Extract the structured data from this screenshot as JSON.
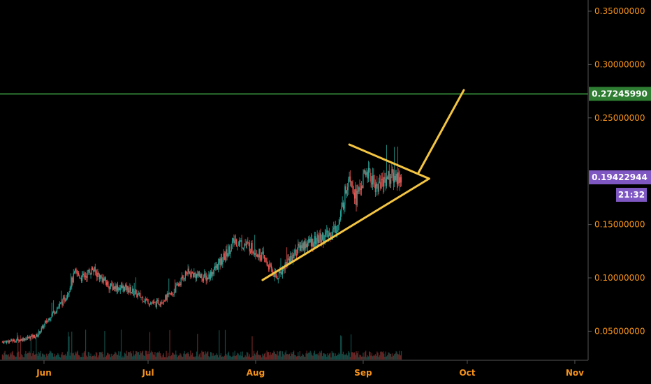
{
  "chart_data": {
    "type": "candlestick",
    "x_axis": {
      "tick_labels": [
        "Jun",
        "Jul",
        "Aug",
        "Sep",
        "Oct",
        "Nov"
      ]
    },
    "y_axis": {
      "range": [
        0.03,
        0.37
      ],
      "tick_labels": [
        "0.35000000",
        "0.30000000",
        "0.25000000",
        "0.15000000",
        "0.10000000",
        "0.05000000"
      ],
      "tick_values": [
        0.35,
        0.3,
        0.25,
        0.15,
        0.1,
        0.05
      ],
      "position": "right"
    },
    "horizontal_line": {
      "value": 0.2724599,
      "label": "0.27245990",
      "color": "#2e7d32"
    },
    "last_price": {
      "value": 0.19422944,
      "label": "0.19422944",
      "countdown": "21:32",
      "color": "#7e57c2"
    },
    "price_path_approx": [
      [
        "May 20",
        0.04
      ],
      [
        "May 25",
        0.042
      ],
      [
        "May 30",
        0.046
      ],
      [
        "Jun 3",
        0.065
      ],
      [
        "Jun 7",
        0.08
      ],
      [
        "Jun 10",
        0.105
      ],
      [
        "Jun 12",
        0.1
      ],
      [
        "Jun 15",
        0.108
      ],
      [
        "Jun 20",
        0.092
      ],
      [
        "Jun 25",
        0.09
      ],
      [
        "Jun 30",
        0.08
      ],
      [
        "Jul 3",
        0.075
      ],
      [
        "Jul 8",
        0.085
      ],
      [
        "Jul 12",
        0.105
      ],
      [
        "Jul 18",
        0.1
      ],
      [
        "Jul 22",
        0.115
      ],
      [
        "Jul 26",
        0.135
      ],
      [
        "Jul 30",
        0.13
      ],
      [
        "Aug 3",
        0.12
      ],
      [
        "Aug 7",
        0.1
      ],
      [
        "Aug 10",
        0.115
      ],
      [
        "Aug 14",
        0.13
      ],
      [
        "Aug 18",
        0.135
      ],
      [
        "Aug 22",
        0.14
      ],
      [
        "Aug 25",
        0.15
      ],
      [
        "Aug 28",
        0.2
      ],
      [
        "Aug 30",
        0.175
      ],
      [
        "Sep 2",
        0.2
      ],
      [
        "Sep 5",
        0.185
      ],
      [
        "Sep 8",
        0.195
      ],
      [
        "Sep 12",
        0.194
      ]
    ],
    "annotations": {
      "triangle_upper": [
        [
          "Aug 28",
          0.225
        ],
        [
          "Sep 20",
          0.193
        ]
      ],
      "triangle_lower": [
        [
          "Aug 3",
          0.098
        ],
        [
          "Sep 20",
          0.193
        ]
      ],
      "breakout_arrow": [
        [
          "Sep 17",
          0.199
        ],
        [
          "Sep 30",
          0.276
        ]
      ],
      "color": "#f4c542"
    },
    "volume": "shown as small bars along bottom",
    "colors": {
      "up": "#26a69a",
      "down": "#ef5350",
      "axis_text": "#f7931a"
    }
  }
}
